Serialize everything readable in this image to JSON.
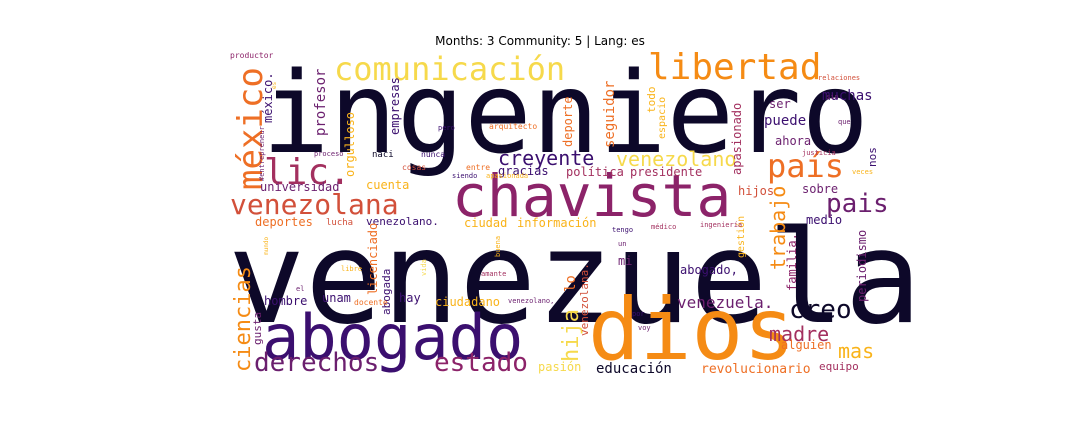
{
  "title": "Months: 3 Community: 5 | Lang: es",
  "palette": {
    "black": "#0d0829",
    "indigo": "#3b0f6f",
    "purple": "#6b1f6e",
    "plum": "#8c2369",
    "magenta": "#a3305f",
    "red": "#d2503a",
    "orange": "#ee6f25",
    "amber": "#f58b14",
    "gold": "#f9b31a",
    "yellow": "#f6d94b"
  },
  "chart_data": {
    "type": "wordcloud",
    "words": [
      {
        "text": "ingeniero",
        "color": "#0d0829"
      },
      {
        "text": "venezuela",
        "color": "#0d0829"
      },
      {
        "text": "abogado",
        "color": "#3b0f6f"
      },
      {
        "text": "dios",
        "color": "#f58b14"
      },
      {
        "text": "chavista",
        "color": "#8c2369"
      },
      {
        "text": "comunicación",
        "color": "#f6d94b"
      },
      {
        "text": "libertad",
        "color": "#f58b14"
      },
      {
        "text": "méxico",
        "color": "#ee6f25"
      },
      {
        "text": "lic.",
        "color": "#a3305f"
      },
      {
        "text": "país",
        "color": "#ee6f25"
      },
      {
        "text": "venezolana",
        "color": "#d2503a"
      },
      {
        "text": "pais",
        "color": "#6b1f6e"
      },
      {
        "text": "creyente",
        "color": "#3b0f6f"
      },
      {
        "text": "venezolano",
        "color": "#f6d94b"
      },
      {
        "text": "derechos",
        "color": "#6b1f6e"
      },
      {
        "text": "estado",
        "color": "#8c2369"
      },
      {
        "text": "ciencias",
        "color": "#f58b14"
      },
      {
        "text": "creo",
        "color": "#0d0829"
      },
      {
        "text": "madre",
        "color": "#a3305f"
      },
      {
        "text": "mas",
        "color": "#f9b31a"
      },
      {
        "text": "hija",
        "color": "#f6d94b"
      },
      {
        "text": "trabajo",
        "color": "#f58b14"
      },
      {
        "text": "venezuela.",
        "color": "#6b1f6e"
      },
      {
        "text": "muchas",
        "color": "#3b0f6f"
      },
      {
        "text": "profesor",
        "color": "#6b1f6e"
      },
      {
        "text": "méxico.",
        "color": "#3b0f6f"
      },
      {
        "text": "orgulloso",
        "color": "#f9b31a"
      },
      {
        "text": "empresas",
        "color": "#3b0f6f"
      },
      {
        "text": "seguidor",
        "color": "#ee6f25"
      },
      {
        "text": "deporte",
        "color": "#ee6f25"
      },
      {
        "text": "apasionado",
        "color": "#a3305f"
      },
      {
        "text": "puede",
        "color": "#3b0f6f"
      },
      {
        "text": "ahora",
        "color": "#6b1f6e"
      },
      {
        "text": "ser",
        "color": "#6b1f6e"
      },
      {
        "text": "todo",
        "color": "#f9b31a"
      },
      {
        "text": "espacio",
        "color": "#f9b31a"
      },
      {
        "text": "universidad",
        "color": "#6b1f6e"
      },
      {
        "text": "cuenta",
        "color": "#f9b31a"
      },
      {
        "text": "deportes",
        "color": "#ee6f25"
      },
      {
        "text": "lucha",
        "color": "#d2503a"
      },
      {
        "text": "venezolano.",
        "color": "#3b0f6f"
      },
      {
        "text": "ciudad",
        "color": "#f9b31a"
      },
      {
        "text": "información",
        "color": "#f9b31a"
      },
      {
        "text": "gracias",
        "color": "#3b0f6f"
      },
      {
        "text": "política",
        "color": "#a3305f"
      },
      {
        "text": "presidente",
        "color": "#a3305f"
      },
      {
        "text": "hijos",
        "color": "#d2503a"
      },
      {
        "text": "sobre",
        "color": "#6b1f6e"
      },
      {
        "text": "medio",
        "color": "#3b0f6f"
      },
      {
        "text": "periodismo",
        "color": "#6b1f6e"
      },
      {
        "text": "familia.",
        "color": "#8c2369"
      },
      {
        "text": "abogado,",
        "color": "#3b0f6f"
      },
      {
        "text": "hombre",
        "color": "#3b0f6f"
      },
      {
        "text": "unam",
        "color": "#3b0f6f"
      },
      {
        "text": "hay",
        "color": "#3b0f6f"
      },
      {
        "text": "ciudadano",
        "color": "#f9b31a"
      },
      {
        "text": "educación",
        "color": "#0d0829"
      },
      {
        "text": "revolucionario",
        "color": "#ee6f25"
      },
      {
        "text": "equipo",
        "color": "#a3305f"
      },
      {
        "text": "alguien",
        "color": "#ee6f25"
      },
      {
        "text": "pasión",
        "color": "#f6d94b"
      },
      {
        "text": "licenciado",
        "color": "#ee6f25"
      },
      {
        "text": "abogada",
        "color": "#3b0f6f"
      },
      {
        "text": "lo",
        "color": "#ee6f25"
      },
      {
        "text": "venezolana.",
        "color": "#d2503a"
      },
      {
        "text": "mi",
        "color": "#6b1f6e"
      },
      {
        "text": "gusta",
        "color": "#6b1f6e"
      },
      {
        "text": "nos",
        "color": "#3b0f6f"
      },
      {
        "text": "gestión",
        "color": "#f9b31a"
      },
      {
        "text": "naci",
        "color": "#0d0829"
      },
      {
        "text": "nunca",
        "color": "#3b0f6f"
      },
      {
        "text": "proceso",
        "color": "#6b1f6e"
      },
      {
        "text": "cosas",
        "color": "#d2503a"
      },
      {
        "text": "entre",
        "color": "#ee6f25"
      },
      {
        "text": "siendo",
        "color": "#3b0f6f"
      },
      {
        "text": "apasionada",
        "color": "#f9b31a"
      },
      {
        "text": "pero",
        "color": "#3b0f6f"
      },
      {
        "text": "arquitecto",
        "color": "#ee6f25"
      },
      {
        "text": "productor",
        "color": "#8c2369"
      },
      {
        "text": "#entrepreneur",
        "color": "#6b1f6e"
      },
      {
        "text": "es",
        "color": "#f9b31a"
      },
      {
        "text": "sin",
        "color": "#6b1f6e"
      },
      {
        "text": "relaciones",
        "color": "#d2503a"
      },
      {
        "text": "que",
        "color": "#6b1f6e"
      },
      {
        "text": "justicia",
        "color": "#a3305f"
      },
      {
        "text": "veces",
        "color": "#f9b31a"
      },
      {
        "text": "tengo",
        "color": "#3b0f6f"
      },
      {
        "text": "un",
        "color": "#6b1f6e"
      },
      {
        "text": "médico",
        "color": "#a3305f"
      },
      {
        "text": "ingeniería",
        "color": "#a3305f"
      },
      {
        "text": "libre",
        "color": "#f9b31a"
      },
      {
        "text": "amante",
        "color": "#a3305f"
      },
      {
        "text": "el",
        "color": "#6b1f6e"
      },
      {
        "text": "docente",
        "color": "#ee6f25"
      },
      {
        "text": "venezolano,",
        "color": "#6b1f6e"
      },
      {
        "text": "por",
        "color": "#3b0f6f"
      },
      {
        "text": "voy",
        "color": "#6b1f6e"
      },
      {
        "text": "mundo",
        "color": "#f9b31a"
      },
      {
        "text": "vida",
        "color": "#f6d94b"
      },
      {
        "text": "buena",
        "color": "#f9b31a"
      }
    ]
  }
}
